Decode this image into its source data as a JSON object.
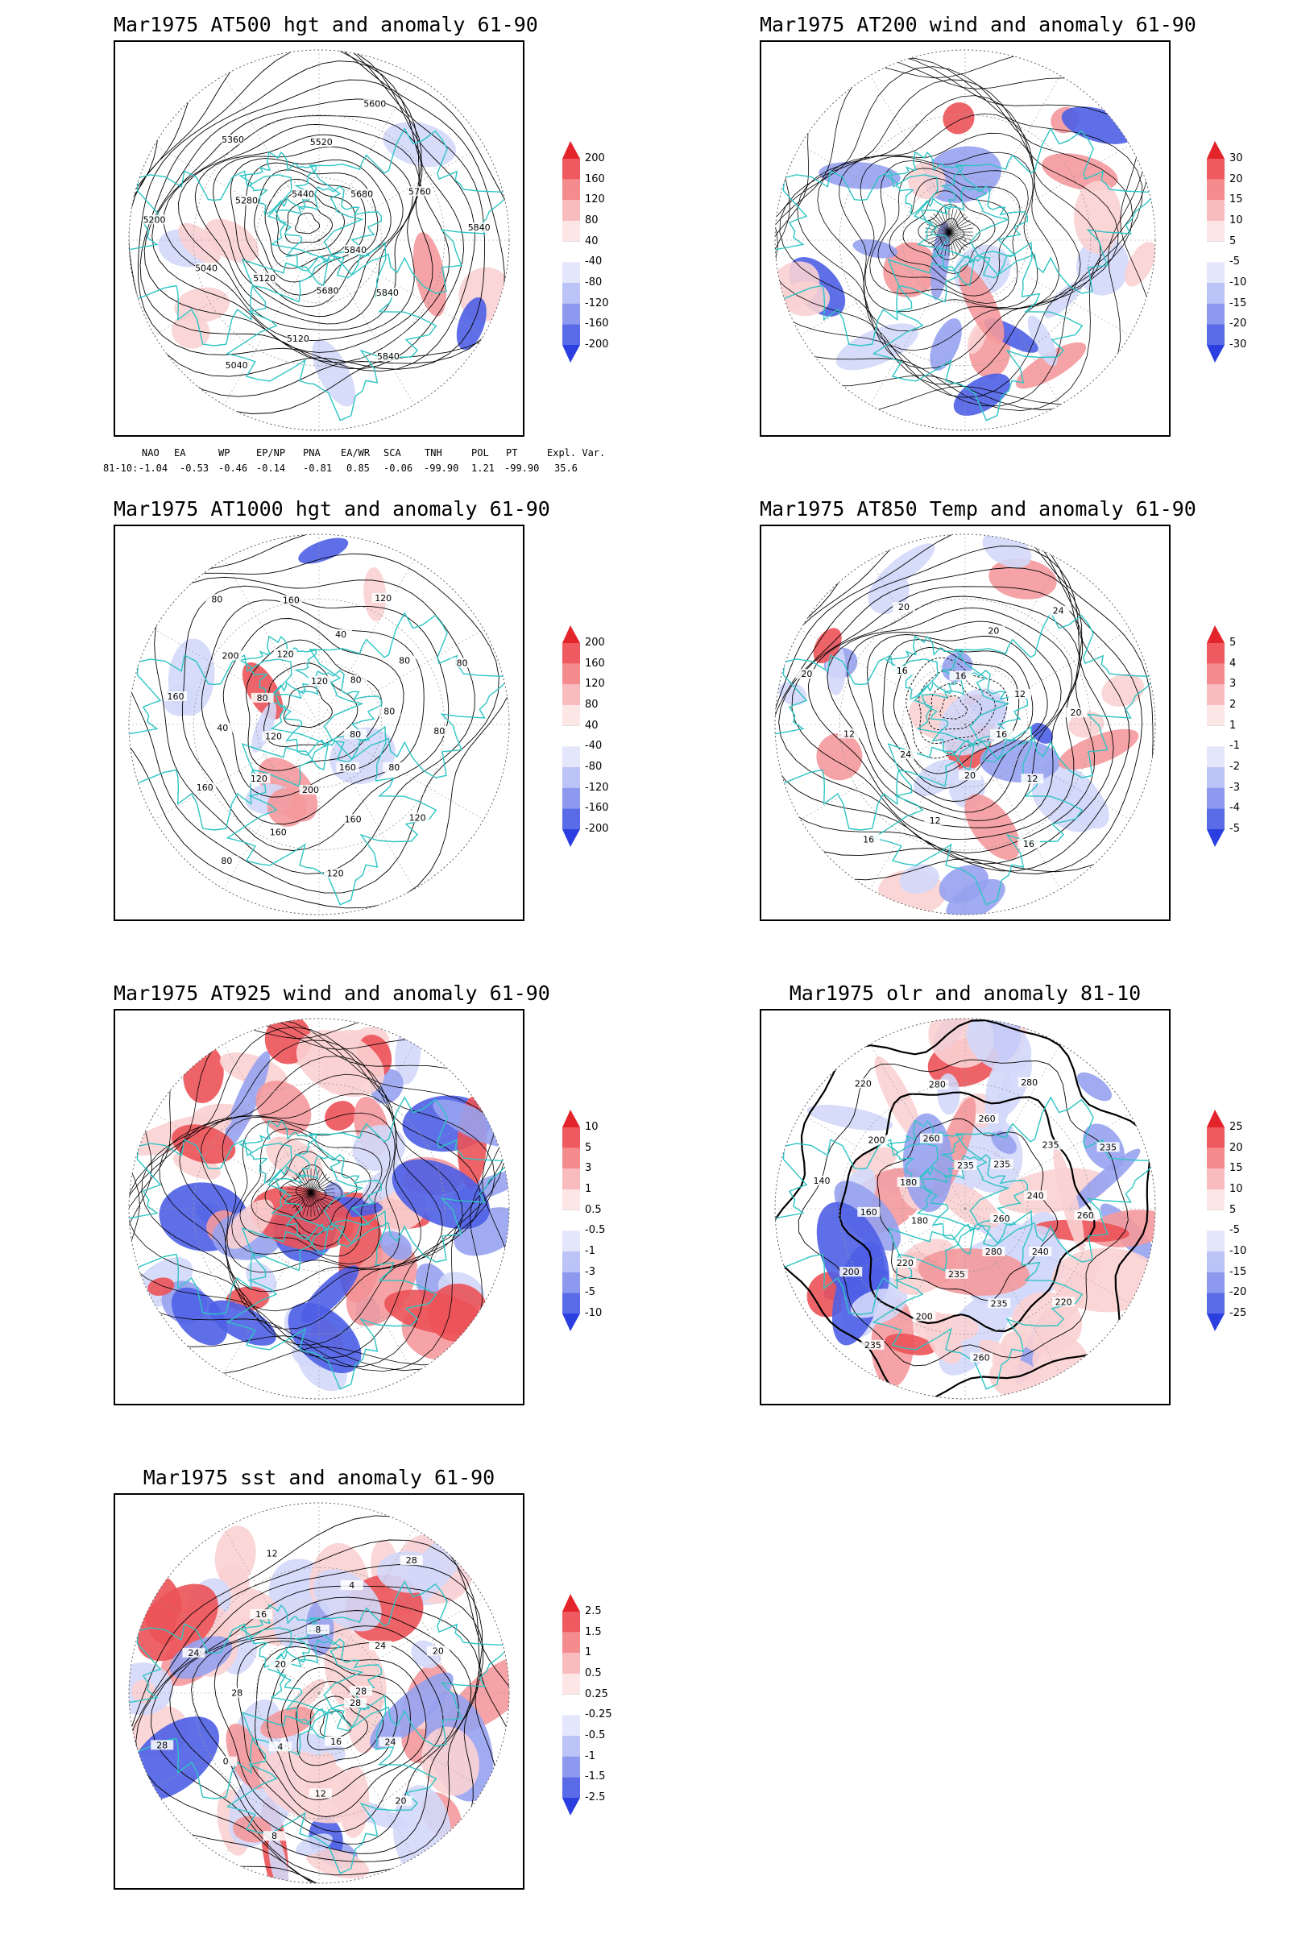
{
  "panels": [
    {
      "id": "p500",
      "title": "Mar1975 AT500 hgt and anomaly 61-90",
      "colorbar_labels": [
        "200",
        "160",
        "120",
        "80",
        "40",
        "-40",
        "-80",
        "-120",
        "-160",
        "-200"
      ],
      "contour_labels": [
        "5840",
        "5840",
        "5840",
        "5680",
        "5120",
        "5040",
        "5120",
        "5040",
        "5200",
        "5280",
        "5360",
        "5440",
        "5520",
        "5600",
        "5680",
        "5760",
        "5840"
      ]
    },
    {
      "id": "p200",
      "title": "Mar1975 AT200 wind and anomaly 61-90",
      "colorbar_labels": [
        "30",
        "20",
        "15",
        "10",
        "5",
        "-5",
        "-10",
        "-15",
        "-20",
        "-30"
      ],
      "contour_labels": []
    },
    {
      "id": "p1000",
      "title": "Mar1975 AT1000 hgt and anomaly 61-90",
      "colorbar_labels": [
        "200",
        "160",
        "120",
        "80",
        "40",
        "-40",
        "-80",
        "-120",
        "-160",
        "-200"
      ],
      "contour_labels": [
        "80",
        "80",
        "120",
        "160",
        "160",
        "120",
        "200",
        "160",
        "80",
        "120",
        "160",
        "120",
        "40",
        "160",
        "80",
        "200",
        "80",
        "120",
        "160",
        "120",
        "40",
        "120",
        "80",
        "80",
        "80",
        "80",
        "80"
      ]
    },
    {
      "id": "p850",
      "title": "Mar1975 AT850 Temp and anomaly 61-90",
      "colorbar_labels": [
        "5",
        "4",
        "3",
        "2",
        "1",
        "-1",
        "-2",
        "-3",
        "-4",
        "-5"
      ],
      "contour_labels": [
        "16",
        "12",
        "16",
        "20",
        "12",
        "16",
        "24",
        "12",
        "20",
        "16",
        "20",
        "16",
        "20",
        "24",
        "12",
        "20"
      ]
    },
    {
      "id": "p925",
      "title": "Mar1975 AT925 wind and anomaly 61-90",
      "colorbar_labels": [
        "10",
        "5",
        "3",
        "1",
        "0.5",
        "-0.5",
        "-1",
        "-3",
        "-5",
        "-10"
      ],
      "contour_labels": []
    },
    {
      "id": "polr",
      "title": "Mar1975 olr and anomaly 81-10",
      "colorbar_labels": [
        "25",
        "20",
        "15",
        "10",
        "5",
        "-5",
        "-10",
        "-15",
        "-20",
        "-25"
      ],
      "contour_labels": [
        "260",
        "240",
        "220",
        "280",
        "235",
        "260",
        "235",
        "200",
        "235",
        "220",
        "200",
        "180",
        "160",
        "140",
        "180",
        "200",
        "220",
        "260",
        "280",
        "235",
        "260",
        "280",
        "235",
        "235",
        "235",
        "240",
        "260"
      ]
    },
    {
      "id": "psst",
      "title": "Mar1975 sst and anomaly 61-90",
      "colorbar_labels": [
        "2.5",
        "1.5",
        "1",
        "0.5",
        "0.25",
        "-0.25",
        "-0.5",
        "-1",
        "-1.5",
        "-2.5"
      ],
      "contour_labels": [
        "28",
        "24",
        "20",
        "16",
        "12",
        "8",
        "4",
        "0",
        "28",
        "28",
        "24",
        "20",
        "16",
        "12",
        "8",
        "4",
        "28",
        "24",
        "20",
        "28"
      ]
    }
  ],
  "indices": {
    "headers": [
      "NAO",
      "EA",
      "WP",
      "EP/NP",
      "PNA",
      "EA/WR",
      "SCA",
      "TNH",
      "POL",
      "PT",
      "Expl. Var."
    ],
    "row_label": "81-10:",
    "values": [
      "-1.04",
      "-0.53",
      "-0.46",
      "-0.14",
      "-0.81",
      "0.85",
      "-0.06",
      "-99.90",
      "1.21",
      "-99.90",
      "35.6"
    ]
  },
  "colors": {
    "coast": "#2ec4c4",
    "contour": "#000000",
    "pos_anom": "#e8474d",
    "neg_anom": "#4d62e8",
    "grid": "#9a9a9a"
  }
}
